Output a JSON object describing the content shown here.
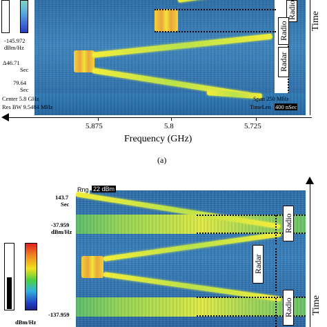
{
  "panel_a": {
    "scale_min": "-145.972",
    "scale_unit": "dBm/Hz",
    "time_marker_1": "Δ46.71",
    "time_marker_1_unit": "Sec",
    "time_marker_2": "79.64",
    "time_marker_2_unit": "Sec",
    "center": "Center 5.8 GHz",
    "span": "Span 250 MHz",
    "res_bw": "Res BW 9.5484 MHz",
    "timelen_label": "TimeLen",
    "timelen_value": "400 nSec",
    "labels": {
      "radio": "Radio",
      "radar": "Radar",
      "time": "Time"
    },
    "x_ticks": [
      "5.875",
      "5.8",
      "5.725"
    ],
    "x_title": "Frequency (GHz)",
    "caption": "(a)"
  },
  "panel_b": {
    "rng_label": "Rng",
    "rng_value": "22 dBm",
    "time_value": "143.7",
    "time_unit": "Sec",
    "scale_max": "-37.959",
    "scale_max_unit": "dBm/Hz",
    "scale_min": "-137.959",
    "scale_min_unit": "dBm/Hz",
    "labels": {
      "radio_top": "Radio",
      "radar": "Radar",
      "radio_bottom": "Radio",
      "time": "Time"
    }
  },
  "colors": {
    "background_blue": "#3579b4",
    "signal_yellow": "#f2ec3a",
    "band_green": "#9ad659"
  }
}
